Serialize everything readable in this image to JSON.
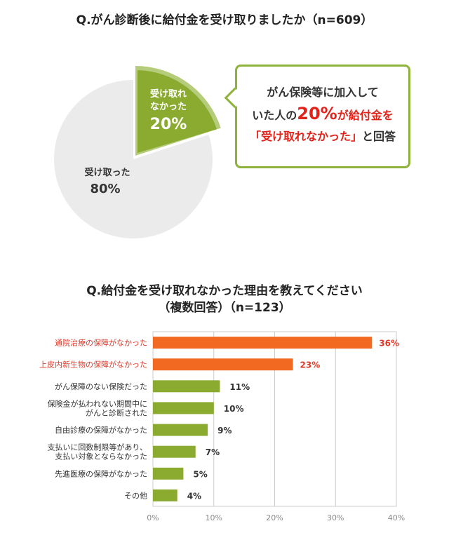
{
  "chart_data": [
    {
      "type": "pie",
      "title": "Q.がん診断後に給付金を受け取りましたか（n=609）",
      "slices": [
        {
          "label_line1": "受け取れ",
          "label_line2": "なかった",
          "value": 20,
          "value_label": "20%",
          "color": "#8aab2f"
        },
        {
          "label_line1": "受け取った",
          "label_line2": "",
          "value": 80,
          "value_label": "80%",
          "color": "#ebebeb"
        }
      ],
      "annotation": {
        "line1": "がん保険等に加入して",
        "line2_pre": "いた人の",
        "line2_highlight": "20%",
        "line2_post": "が給付金を",
        "line3_highlight": "「受け取れなかった」",
        "line3_post": "と回答"
      }
    },
    {
      "type": "bar",
      "orientation": "horizontal",
      "title_line1": "Q.給付金を受け取れなかった理由を教えてください",
      "title_line2": "（複数回答）（n=123）",
      "categories": [
        [
          "通院治療の保障がなかった"
        ],
        [
          "上皮内新生物の保障がなかった"
        ],
        [
          "がん保障のない保険だった"
        ],
        [
          "保険金が払われない期間中に",
          "がんと診断された"
        ],
        [
          "自由診療の保障がなかった"
        ],
        [
          "支払いに回数制限等があり、",
          "支払い対象とならなかった"
        ],
        [
          "先進医療の保障がなかった"
        ],
        [
          "その他"
        ]
      ],
      "values": [
        36,
        23,
        11,
        10,
        9,
        7,
        5,
        4
      ],
      "value_labels": [
        "36%",
        "23%",
        "11%",
        "10%",
        "9%",
        "7%",
        "5%",
        "4%"
      ],
      "highlight": [
        true,
        true,
        false,
        false,
        false,
        false,
        false,
        false
      ],
      "xlim": [
        0,
        40
      ],
      "xticks": [
        "0%",
        "10%",
        "20%",
        "30%",
        "40%"
      ],
      "grid": true,
      "colors": {
        "highlight": "#f26a21",
        "normal": "#8aab2f",
        "highlight_text": "#e03a2a",
        "text": "#333333"
      }
    }
  ]
}
